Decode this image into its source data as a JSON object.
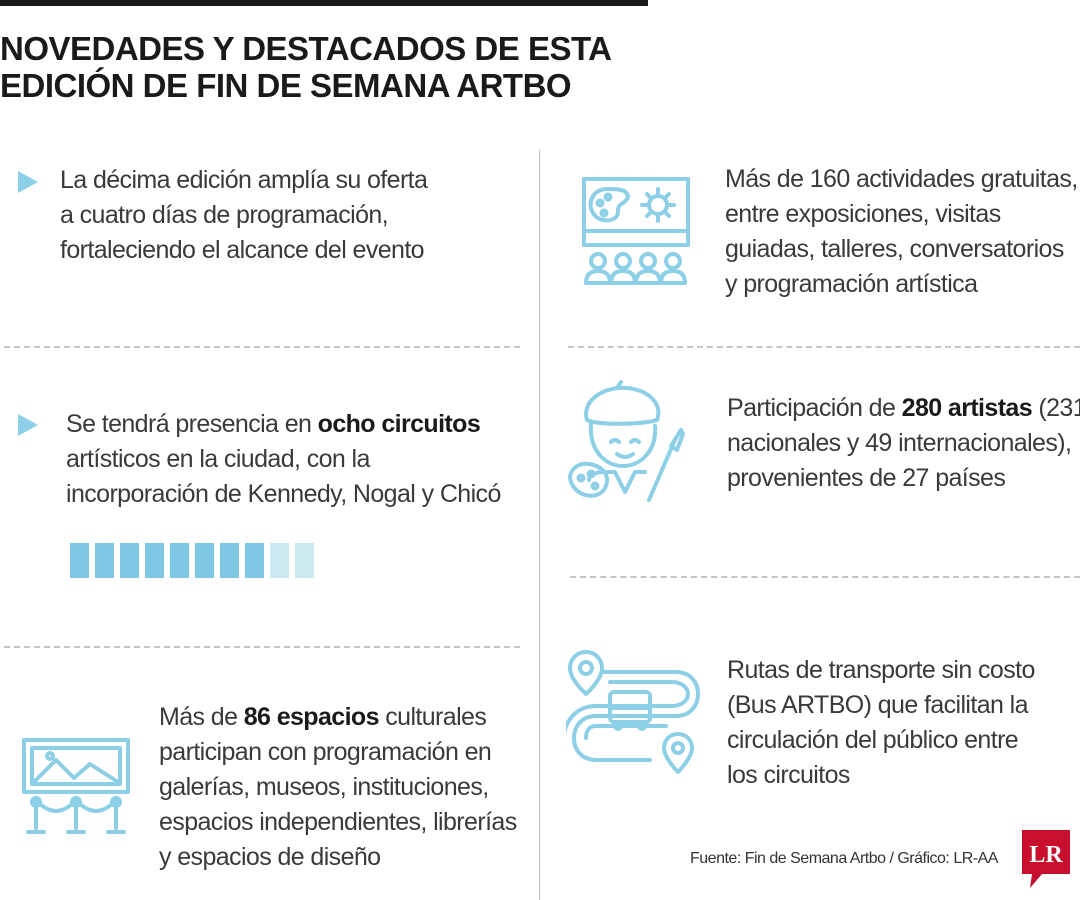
{
  "title": {
    "line1": "NOVEDADES Y DESTACADOS DE ESTA",
    "line2": "EDICIÓN DE FIN DE SEMANA ARTBO"
  },
  "left": {
    "item1": {
      "lines": [
        "La décima edición amplía su oferta",
        "a cuatro días de programación,",
        "fortaleciendo el alcance del evento"
      ]
    },
    "item2": {
      "pre": "Se tendrá presencia en ",
      "bold": "ocho circuitos",
      "lines": [
        "artísticos en la ciudad, con la",
        "incorporación de Kennedy, Nogal y Chicó"
      ],
      "circuits": {
        "filled": 8,
        "total": 10
      }
    },
    "item3": {
      "pre": "Más de ",
      "bold": "86 espacios",
      "post": " culturales",
      "lines": [
        "participan con programación en",
        "galerías, museos, instituciones,",
        "espacios independientes, librerías",
        "y espacios de diseño"
      ]
    }
  },
  "right": {
    "item1": {
      "lines": [
        "Más de 160 actividades gratuitas,",
        "entre exposiciones, visitas",
        "guiadas, talleres, conversatorios",
        "y programación artística"
      ]
    },
    "item2": {
      "pre": "Participación de ",
      "bold": "280 artistas",
      "post": " (231",
      "lines": [
        "nacionales y 49 internacionales),",
        "provenientes de 27 países"
      ]
    },
    "item3": {
      "lines": [
        "Rutas de transporte sin costo",
        "(Bus ARTBO) que facilitan la",
        "circulación del público entre",
        "los circuitos"
      ]
    }
  },
  "source": "Fuente: Fin de Semana Artbo / Gráfico: LR-AA",
  "logo_text": "LR",
  "colors": {
    "accent": "#8ccfe6",
    "accent_light": "#cde9f4",
    "brand_red": "#c8102e",
    "title": "#1a1a1a"
  },
  "icons": [
    "arrow-bullet-icon",
    "palette-screen-icon",
    "artist-icon",
    "gallery-frame-icon",
    "bus-route-icon",
    "lr-logo-icon"
  ]
}
